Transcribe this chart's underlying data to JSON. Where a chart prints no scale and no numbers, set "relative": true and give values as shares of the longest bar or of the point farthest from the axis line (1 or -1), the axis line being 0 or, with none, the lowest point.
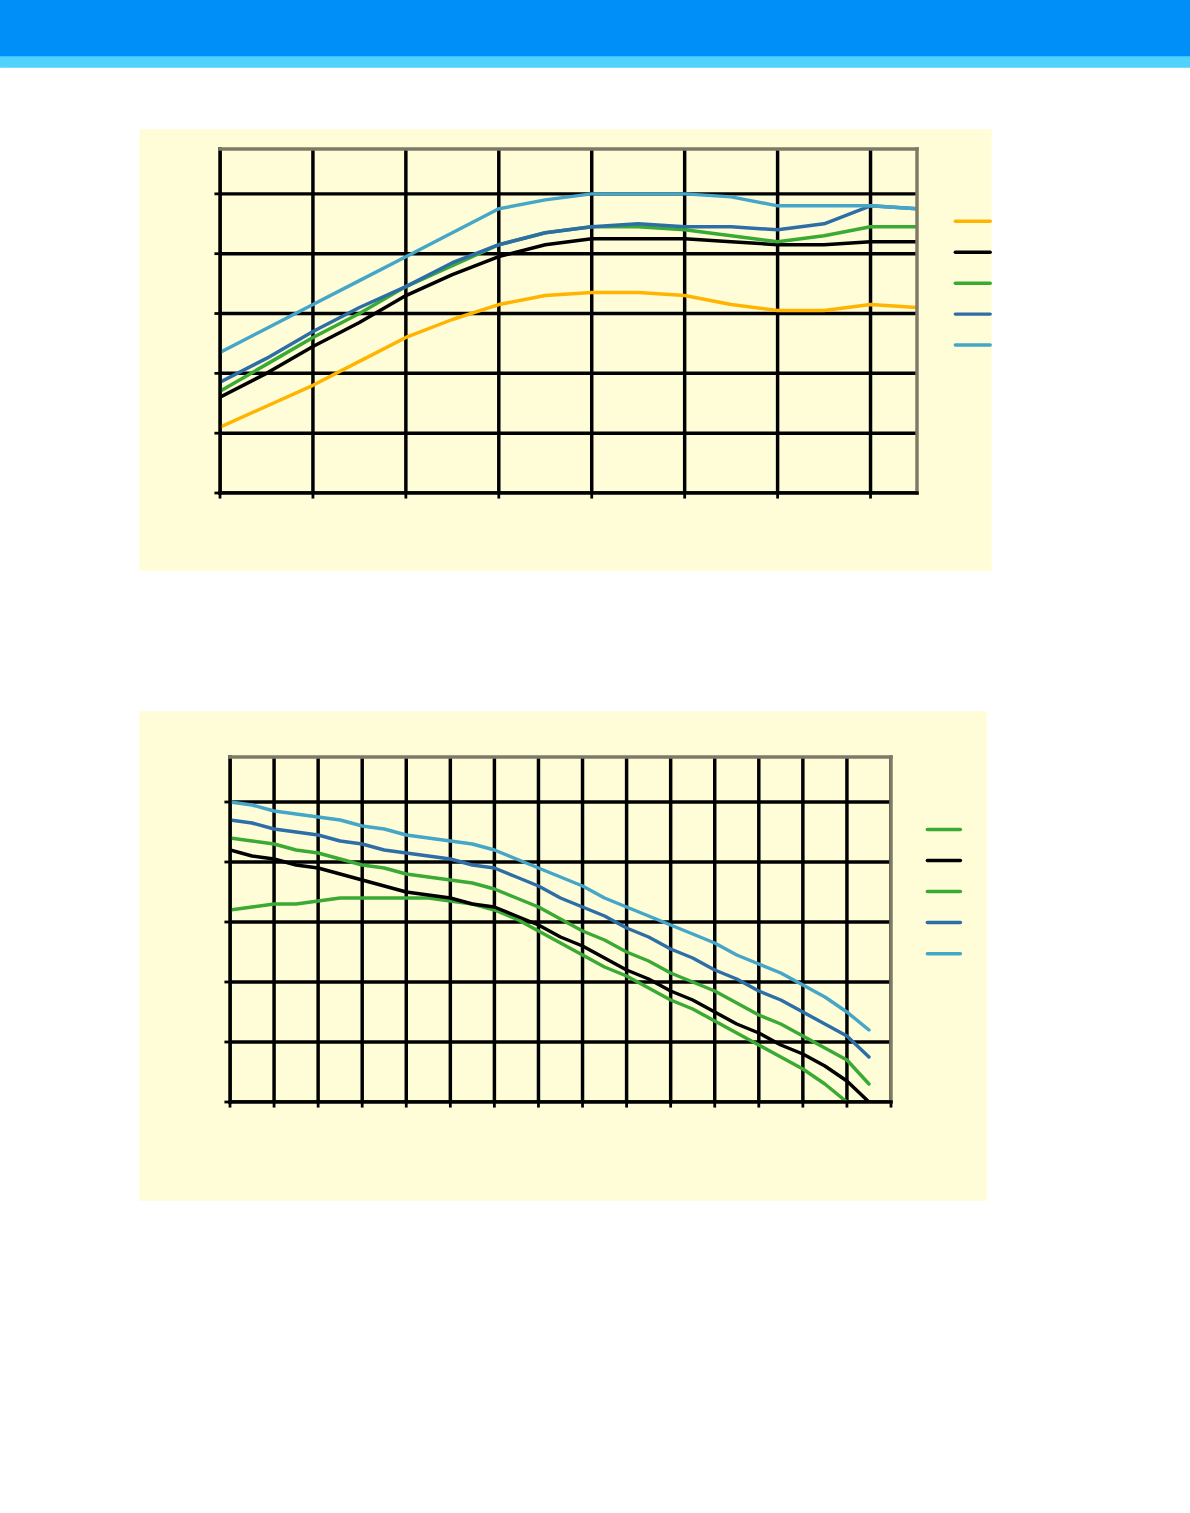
{
  "chart_data": [
    {
      "type": "line",
      "relative": true,
      "grid": true,
      "marker": "none",
      "line_style": "solid",
      "categories": [
        null,
        null,
        null,
        null,
        null,
        null,
        null,
        null,
        null,
        null,
        null,
        null,
        null,
        null,
        null,
        null
      ],
      "series": [
        {
          "color": "#ffb400",
          "values": [
            0.22,
            0.29,
            0.36,
            0.44,
            0.52,
            0.58,
            0.63,
            0.66,
            0.67,
            0.67,
            0.66,
            0.63,
            0.61,
            0.61,
            0.63,
            0.62
          ]
        },
        {
          "color": "#000000",
          "values": [
            0.32,
            0.4,
            0.49,
            0.57,
            0.66,
            0.73,
            0.79,
            0.83,
            0.85,
            0.85,
            0.85,
            0.84,
            0.83,
            0.83,
            0.84,
            0.84
          ]
        },
        {
          "color": "#3aaa35",
          "values": [
            0.34,
            0.43,
            0.52,
            0.6,
            0.69,
            0.76,
            0.83,
            0.87,
            0.89,
            0.89,
            0.88,
            0.86,
            0.84,
            0.86,
            0.89,
            0.89
          ]
        },
        {
          "color": "#2e6ea6",
          "values": [
            0.37,
            0.45,
            0.54,
            0.62,
            0.69,
            0.77,
            0.83,
            0.87,
            0.89,
            0.9,
            0.89,
            0.89,
            0.88,
            0.9,
            0.96,
            0.95
          ]
        },
        {
          "color": "#45a6c8",
          "values": [
            0.47,
            0.55,
            0.63,
            0.71,
            0.79,
            0.87,
            0.95,
            0.98,
            1.0,
            1.0,
            1.0,
            0.99,
            0.96,
            0.96,
            0.96,
            0.95
          ]
        }
      ]
    },
    {
      "type": "line",
      "relative": true,
      "grid": true,
      "marker": "none",
      "line_style": "solid",
      "categories": [
        null,
        null,
        null,
        null,
        null,
        null,
        null,
        null,
        null,
        null,
        null,
        null,
        null,
        null,
        null,
        null,
        null,
        null,
        null,
        null,
        null,
        null,
        null,
        null,
        null,
        null,
        null,
        null,
        null,
        null,
        null
      ],
      "series": [
        {
          "color": "#3aaa35",
          "values": [
            0.64,
            0.65,
            0.66,
            0.66,
            0.67,
            0.68,
            0.68,
            0.68,
            0.68,
            0.68,
            0.67,
            0.66,
            0.64,
            0.61,
            0.57,
            0.53,
            0.49,
            0.45,
            0.42,
            0.38,
            0.34,
            0.31,
            0.27,
            0.23,
            0.19,
            0.15,
            0.11,
            0.06,
            0,
            null,
            null
          ]
        },
        {
          "color": "#000000",
          "values": [
            0.84,
            0.82,
            0.81,
            0.79,
            0.78,
            0.76,
            0.74,
            0.72,
            0.7,
            0.69,
            0.68,
            0.66,
            0.65,
            0.62,
            0.59,
            0.55,
            0.52,
            0.48,
            0.44,
            0.41,
            0.37,
            0.34,
            0.3,
            0.26,
            0.23,
            0.19,
            0.16,
            0.12,
            0.07,
            0,
            null
          ]
        },
        {
          "color": "#3aaa35",
          "values": [
            0.88,
            0.87,
            0.86,
            0.84,
            0.83,
            0.81,
            0.79,
            0.78,
            0.76,
            0.75,
            0.74,
            0.73,
            0.71,
            0.68,
            0.65,
            0.61,
            0.57,
            0.54,
            0.5,
            0.47,
            0.43,
            0.4,
            0.37,
            0.33,
            0.29,
            0.26,
            0.22,
            0.18,
            0.14,
            0.06,
            null
          ]
        },
        {
          "color": "#2e6ea6",
          "values": [
            0.94,
            0.93,
            0.91,
            0.9,
            0.89,
            0.87,
            0.86,
            0.84,
            0.83,
            0.82,
            0.81,
            0.79,
            0.78,
            0.75,
            0.72,
            0.68,
            0.65,
            0.62,
            0.58,
            0.55,
            0.51,
            0.48,
            0.44,
            0.41,
            0.37,
            0.34,
            0.3,
            0.26,
            0.22,
            0.15,
            null
          ]
        },
        {
          "color": "#45a6c8",
          "values": [
            1.0,
            0.99,
            0.97,
            0.96,
            0.95,
            0.94,
            0.92,
            0.91,
            0.89,
            0.88,
            0.87,
            0.86,
            0.84,
            0.81,
            0.78,
            0.75,
            0.72,
            0.68,
            0.65,
            0.62,
            0.59,
            0.56,
            0.53,
            0.49,
            0.46,
            0.43,
            0.39,
            0.35,
            0.3,
            0.24,
            null
          ]
        }
      ]
    }
  ]
}
